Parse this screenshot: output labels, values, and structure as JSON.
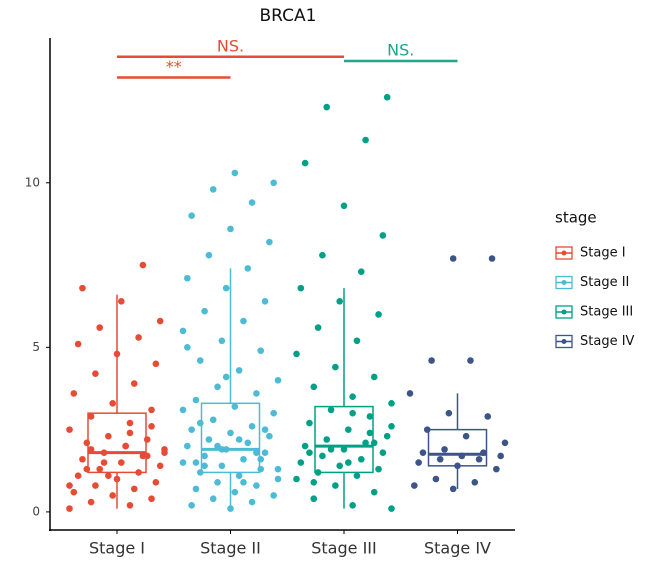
{
  "chart_data": {
    "type": "box",
    "title": "BRCA1",
    "categories": [
      "Stage I",
      "Stage II",
      "Stage III",
      "Stage IV"
    ],
    "ylim": [
      -0.55,
      14.4
    ],
    "yticks": [
      0,
      5,
      10
    ],
    "legend_title": "stage",
    "legend_position": "right",
    "series": [
      {
        "name": "Stage I",
        "color": "#E64B35",
        "stats": [
          0.1,
          1.2,
          1.8,
          3.0,
          6.6
        ],
        "points": [
          0.1,
          0.2,
          0.3,
          0.4,
          0.5,
          0.6,
          0.7,
          0.8,
          0.9,
          1.0,
          1.1,
          1.2,
          1.3,
          1.4,
          1.5,
          1.6,
          1.7,
          1.8,
          1.9,
          2.0,
          2.1,
          2.2,
          2.3,
          2.5,
          2.7,
          2.9,
          3.1,
          3.3,
          3.6,
          3.9,
          4.2,
          4.5,
          4.8,
          5.1,
          5.3,
          5.6,
          5.8,
          6.4,
          6.8,
          7.5,
          1.5,
          1.8,
          2.0,
          1.3,
          1.7,
          1.1,
          0.8,
          2.4,
          1.9,
          2.6
        ]
      },
      {
        "name": "Stage II",
        "color": "#4DBBD5",
        "stats": [
          0.05,
          1.2,
          1.9,
          3.3,
          7.4
        ],
        "points": [
          0.1,
          0.2,
          0.3,
          0.4,
          0.5,
          0.6,
          0.7,
          0.8,
          0.9,
          1.0,
          1.1,
          1.2,
          1.3,
          1.4,
          1.5,
          1.6,
          1.7,
          1.8,
          1.9,
          2.0,
          2.1,
          2.2,
          2.3,
          2.4,
          2.5,
          2.6,
          2.8,
          3.0,
          3.2,
          3.4,
          3.6,
          3.8,
          4.0,
          4.3,
          4.6,
          4.9,
          5.2,
          5.5,
          5.8,
          6.1,
          6.4,
          6.8,
          7.1,
          7.4,
          7.8,
          8.2,
          8.6,
          9.0,
          9.4,
          9.8,
          10.0,
          10.3,
          1.5,
          1.8,
          2.0,
          1.3,
          2.2,
          2.7,
          1.6,
          1.9,
          3.1,
          0.9,
          1.4,
          2.5,
          4.1,
          5.0
        ]
      },
      {
        "name": "Stage III",
        "color": "#00A087",
        "stats": [
          0.1,
          1.2,
          2.0,
          3.2,
          6.8
        ],
        "points": [
          0.1,
          0.2,
          0.4,
          0.6,
          0.8,
          1.0,
          1.1,
          1.2,
          1.3,
          1.4,
          1.5,
          1.6,
          1.7,
          1.8,
          1.9,
          2.0,
          2.1,
          2.2,
          2.3,
          2.5,
          2.7,
          2.9,
          3.1,
          3.3,
          3.5,
          3.8,
          4.1,
          4.4,
          4.8,
          5.2,
          5.6,
          6.0,
          6.4,
          6.8,
          7.3,
          7.8,
          8.4,
          9.3,
          10.6,
          11.3,
          12.3,
          12.6,
          1.5,
          1.8,
          2.4,
          1.9,
          2.6,
          3.0,
          0.9,
          2.1
        ]
      },
      {
        "name": "Stage IV",
        "color": "#3C5488",
        "stats": [
          0.7,
          1.4,
          1.75,
          2.5,
          3.6
        ],
        "points": [
          0.7,
          0.8,
          0.9,
          1.0,
          1.3,
          1.4,
          1.5,
          1.6,
          1.6,
          1.7,
          1.7,
          1.8,
          1.8,
          1.9,
          2.1,
          2.3,
          2.5,
          2.9,
          3.0,
          3.6,
          4.6,
          4.6,
          7.7,
          7.7
        ]
      }
    ],
    "annotations": [
      {
        "label": "NS.",
        "from": 0,
        "to": 2,
        "y": 13.83,
        "color": "#E64B35"
      },
      {
        "label": "**",
        "from": 0,
        "to": 1,
        "y": 13.2,
        "color": "#E64B35"
      },
      {
        "label": "NS.",
        "from": 2,
        "to": 3,
        "y": 13.7,
        "color": "#20A68B"
      }
    ]
  }
}
